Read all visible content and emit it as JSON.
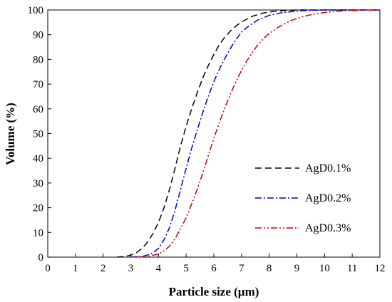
{
  "chart_data": {
    "type": "line",
    "title": "",
    "xlabel": "Particle size (µm)",
    "ylabel": "Volume (%)",
    "xlim": [
      0,
      12
    ],
    "ylim": [
      0,
      100
    ],
    "xticks": [
      "0",
      "1",
      "2",
      "3",
      "4",
      "5",
      "6",
      "7",
      "8",
      "9",
      "10",
      "11",
      "12"
    ],
    "yticks": [
      "0",
      "10",
      "20",
      "30",
      "40",
      "50",
      "60",
      "70",
      "80",
      "90",
      "100"
    ],
    "grid": false,
    "legend_position": "center-right",
    "series": [
      {
        "name": "AgD0.1%",
        "color": "#000000",
        "dash": "dashed",
        "points": [
          [
            2.5,
            0
          ],
          [
            2.8,
            0.3
          ],
          [
            3.0,
            0.8
          ],
          [
            3.2,
            1.8
          ],
          [
            3.4,
            3.5
          ],
          [
            3.6,
            6
          ],
          [
            3.8,
            9.5
          ],
          [
            4.0,
            14
          ],
          [
            4.2,
            20
          ],
          [
            4.4,
            27.5
          ],
          [
            4.6,
            36
          ],
          [
            4.8,
            45
          ],
          [
            5.0,
            53
          ],
          [
            5.2,
            60
          ],
          [
            5.4,
            66.5
          ],
          [
            5.6,
            72.5
          ],
          [
            5.8,
            77.5
          ],
          [
            6.0,
            82
          ],
          [
            6.2,
            86
          ],
          [
            6.4,
            89
          ],
          [
            6.6,
            91.5
          ],
          [
            6.8,
            93.5
          ],
          [
            7.0,
            95.2
          ],
          [
            7.4,
            97.5
          ],
          [
            7.8,
            98.8
          ],
          [
            8.2,
            99.5
          ],
          [
            8.6,
            99.8
          ],
          [
            9.0,
            100
          ],
          [
            12.0,
            100
          ]
        ]
      },
      {
        "name": "AgD0.2%",
        "color": "#0000cc",
        "dash": "dash-dot",
        "points": [
          [
            3.0,
            0
          ],
          [
            3.4,
            0.3
          ],
          [
            3.6,
            0.8
          ],
          [
            3.8,
            1.8
          ],
          [
            4.0,
            3.5
          ],
          [
            4.2,
            7
          ],
          [
            4.4,
            12
          ],
          [
            4.6,
            19
          ],
          [
            4.8,
            27.5
          ],
          [
            5.0,
            36
          ],
          [
            5.2,
            44
          ],
          [
            5.4,
            51.5
          ],
          [
            5.6,
            58.5
          ],
          [
            5.8,
            65
          ],
          [
            6.0,
            71
          ],
          [
            6.2,
            76
          ],
          [
            6.4,
            80.5
          ],
          [
            6.6,
            84.5
          ],
          [
            6.8,
            88
          ],
          [
            7.0,
            91
          ],
          [
            7.2,
            93
          ],
          [
            7.6,
            96
          ],
          [
            8.0,
            97.8
          ],
          [
            8.4,
            98.8
          ],
          [
            8.8,
            99.3
          ],
          [
            9.2,
            99.7
          ],
          [
            10.0,
            100
          ],
          [
            12.0,
            100
          ]
        ]
      },
      {
        "name": "AgD0.3%",
        "color": "#cc0000",
        "dash": "dash-dot-dot",
        "points": [
          [
            3.2,
            0
          ],
          [
            3.6,
            0.3
          ],
          [
            4.0,
            1.2
          ],
          [
            4.2,
            2.5
          ],
          [
            4.4,
            4.5
          ],
          [
            4.6,
            7.5
          ],
          [
            4.8,
            11.5
          ],
          [
            5.0,
            16
          ],
          [
            5.2,
            21.5
          ],
          [
            5.4,
            27.5
          ],
          [
            5.6,
            34
          ],
          [
            5.8,
            41
          ],
          [
            6.0,
            48
          ],
          [
            6.2,
            54.5
          ],
          [
            6.4,
            60.5
          ],
          [
            6.6,
            66
          ],
          [
            6.8,
            71
          ],
          [
            7.0,
            75.5
          ],
          [
            7.2,
            79.5
          ],
          [
            7.4,
            83
          ],
          [
            7.6,
            86
          ],
          [
            7.8,
            88.5
          ],
          [
            8.0,
            90.5
          ],
          [
            8.4,
            93.5
          ],
          [
            8.8,
            95.8
          ],
          [
            9.2,
            97.3
          ],
          [
            9.6,
            98.3
          ],
          [
            10.0,
            99
          ],
          [
            10.5,
            99.5
          ],
          [
            11.0,
            99.8
          ],
          [
            12.0,
            100
          ]
        ]
      }
    ]
  }
}
